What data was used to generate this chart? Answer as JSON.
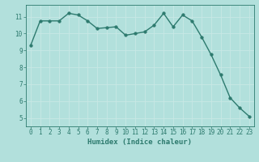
{
  "x": [
    0,
    1,
    2,
    3,
    4,
    5,
    6,
    7,
    8,
    9,
    10,
    11,
    12,
    13,
    14,
    15,
    16,
    17,
    18,
    19,
    20,
    21,
    22,
    23
  ],
  "y": [
    9.3,
    10.75,
    10.75,
    10.75,
    11.2,
    11.1,
    10.75,
    10.3,
    10.35,
    10.4,
    9.9,
    10.0,
    10.1,
    10.5,
    11.2,
    10.4,
    11.1,
    10.75,
    9.8,
    8.75,
    7.55,
    6.2,
    5.6,
    5.1
  ],
  "line_color": "#2d7a6e",
  "marker_color": "#2d7a6e",
  "bg_color": "#b2e0dc",
  "grid_color": "#c8e8e5",
  "xlabel": "Humidex (Indice chaleur)",
  "xlim": [
    -0.5,
    23.5
  ],
  "ylim": [
    4.5,
    11.7
  ],
  "yticks": [
    5,
    6,
    7,
    8,
    9,
    10,
    11
  ],
  "xticks": [
    0,
    1,
    2,
    3,
    4,
    5,
    6,
    7,
    8,
    9,
    10,
    11,
    12,
    13,
    14,
    15,
    16,
    17,
    18,
    19,
    20,
    21,
    22,
    23
  ],
  "tick_color": "#2d7a6e",
  "label_color": "#2d7a6e",
  "font_size_tick": 5.5,
  "font_size_label": 6.5,
  "linewidth": 1.0,
  "markersize": 2.5
}
